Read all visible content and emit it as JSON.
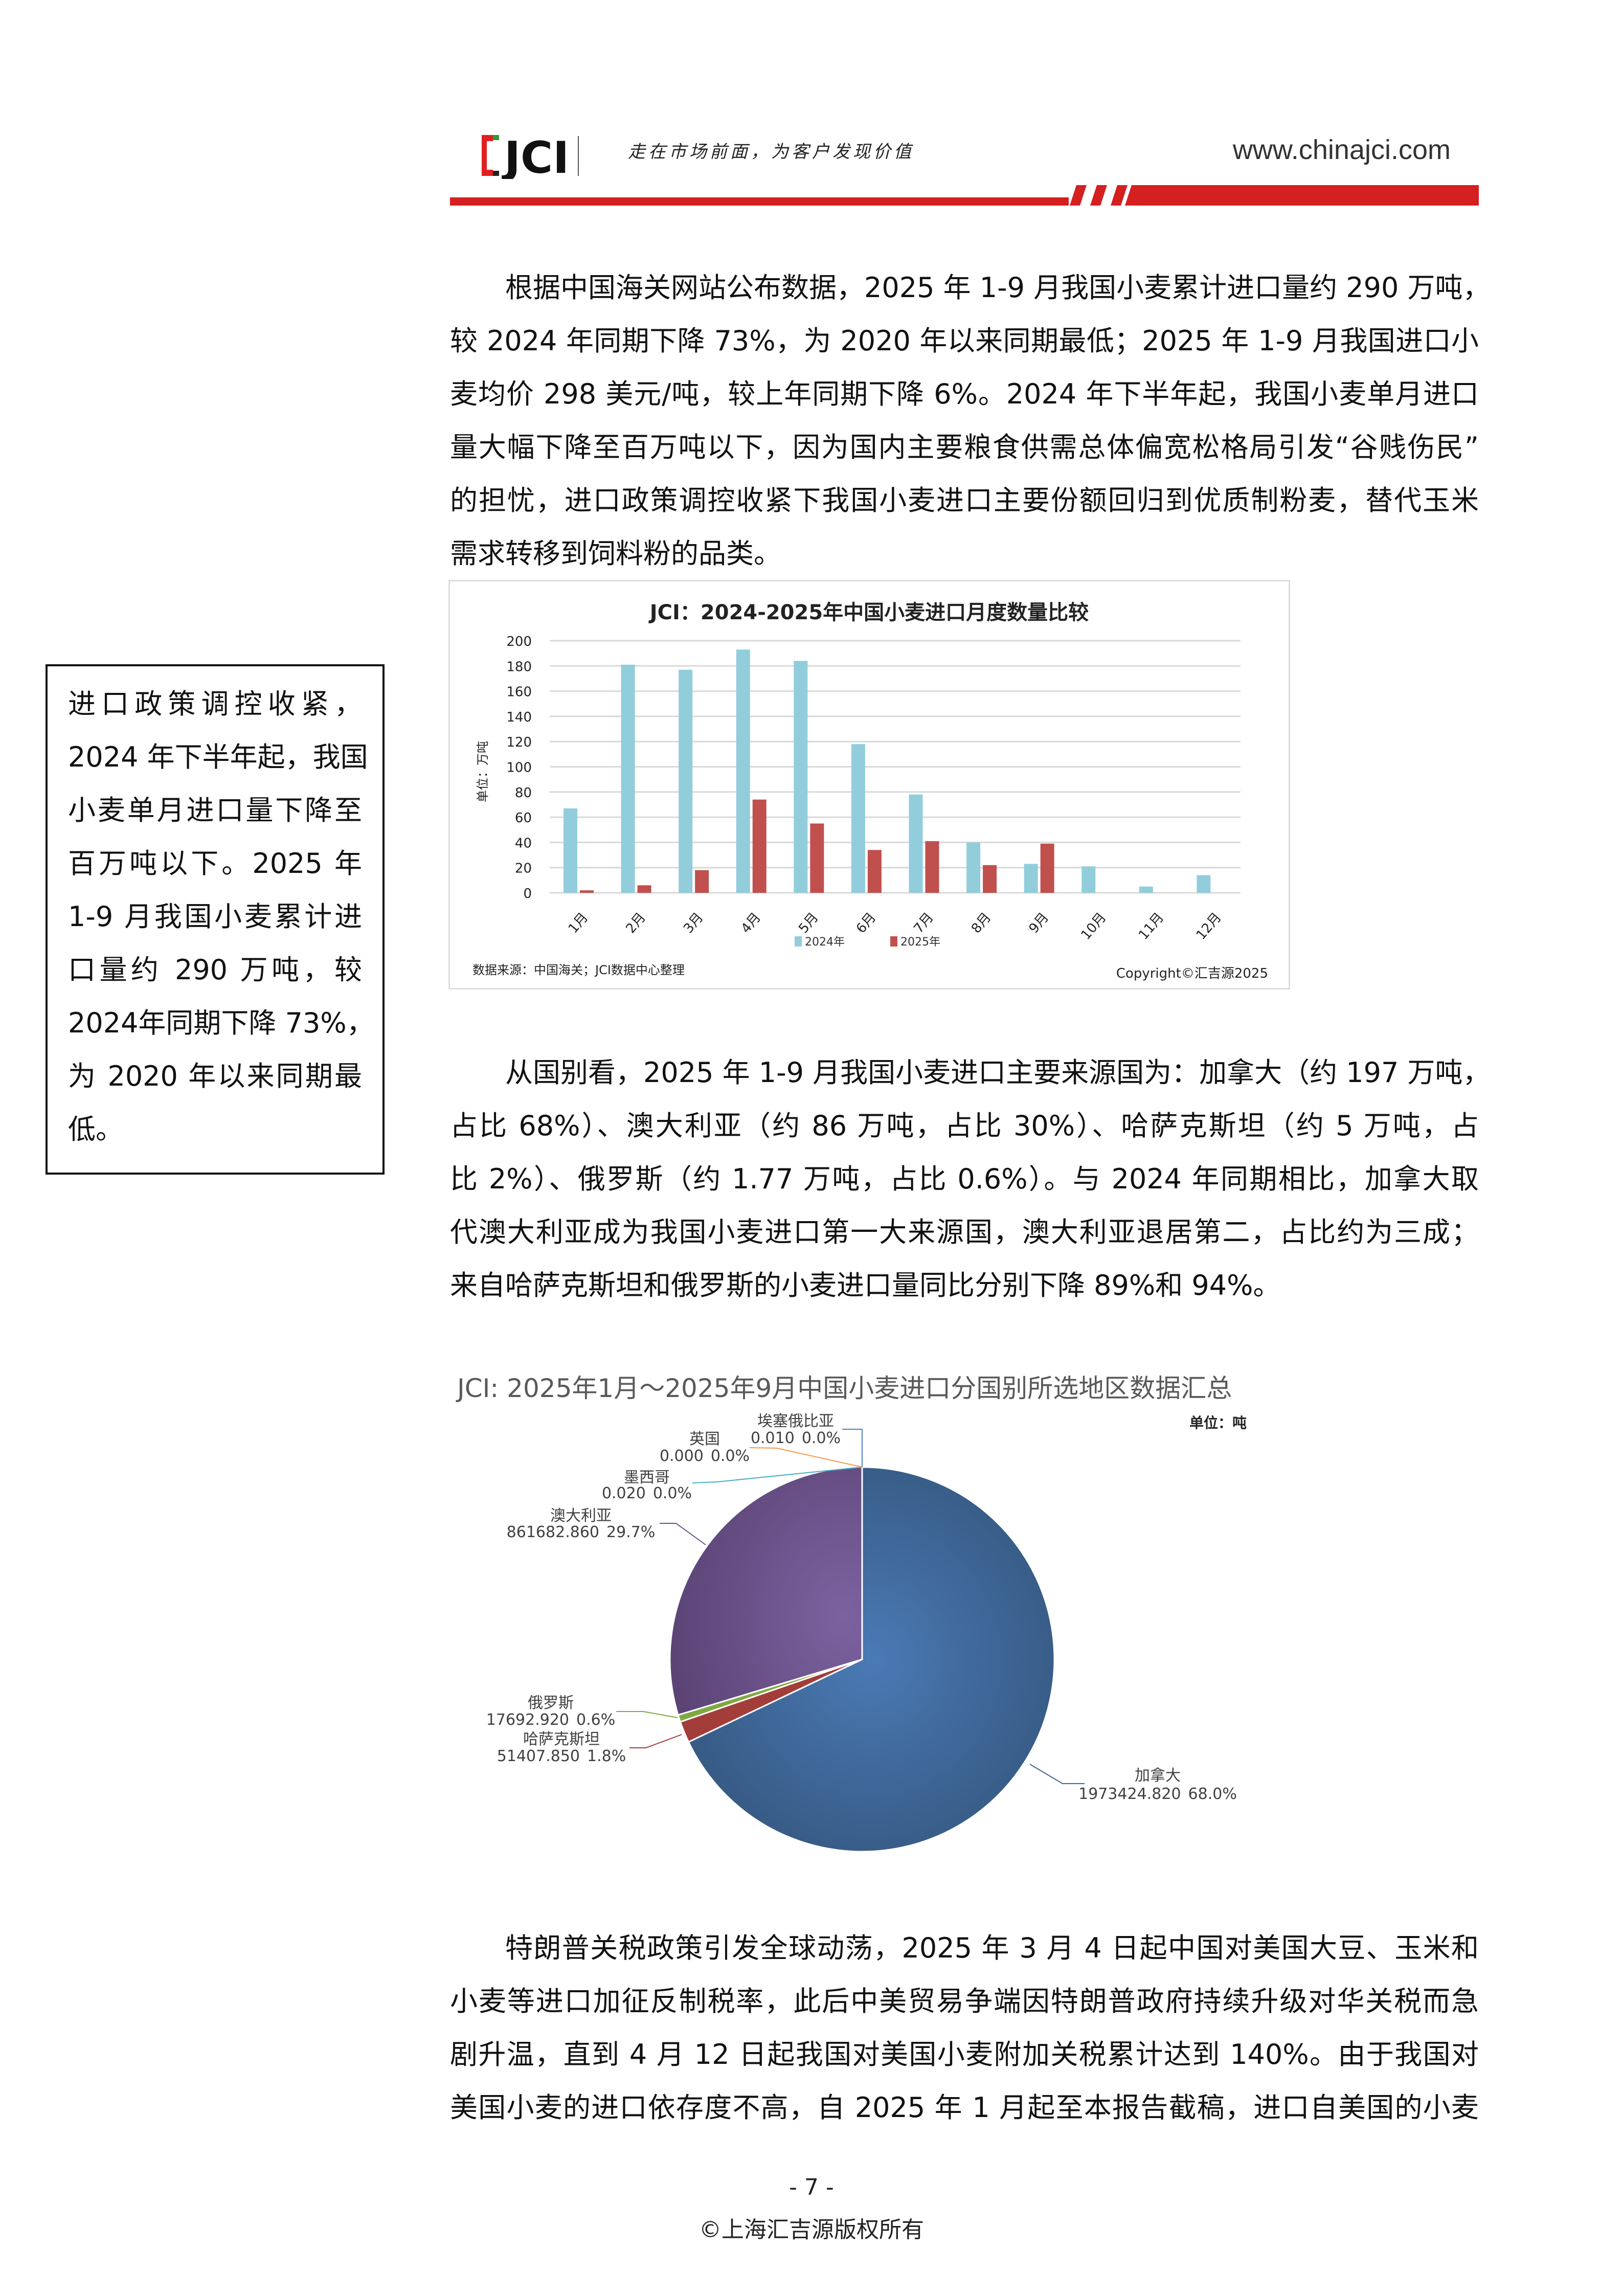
{
  "header": {
    "logo_text": "JCI",
    "slogan": "走在市场前面，为客户发现价值",
    "url": "www.chinajci.com"
  },
  "paragraph1": [
    "根据中国海关网站公布数据，2025 年 1-9 月我国小麦累计进口量约 290 万吨，",
    "较 2024 年同期下降 73%，为 2020 年以来同期最低；2025 年 1-9 月我国进口小",
    "麦均价 298 美元/吨，较上年同期下降 6%。2024 年下半年起，我国小麦单月进口",
    "量大幅下降至百万吨以下，因为国内主要粮食供需总体偏宽松格局引发“谷贱伤民”",
    "的担忧，进口政策调控收紧下我国小麦进口主要份额回归到优质制粉麦，替代玉米",
    "需求转移到饲料粉的品类。"
  ],
  "sidebar_note": [
    "进口政策调控收紧，",
    "2024 年下半年起，我国",
    "小麦单月进口量下降至",
    "百万吨以下。2025 年",
    "1-9 月我国小麦累计进",
    "口量约 290 万吨，较",
    "2024年同期下降 73%，",
    "为 2020 年以来同期最",
    "低。"
  ],
  "paragraph2": [
    "从国别看，2025 年 1-9 月我国小麦进口主要来源国为：加拿大（约 197 万吨，",
    "占比 68%）、澳大利亚（约 86 万吨，占比 30%）、哈萨克斯坦（约 5 万吨，占",
    "比 2%）、俄罗斯（约 1.77 万吨，占比 0.6%）。与 2024 年同期相比，加拿大取",
    "代澳大利亚成为我国小麦进口第一大来源国，澳大利亚退居第二，占比约为三成；",
    "来自哈萨克斯坦和俄罗斯的小麦进口量同比分别下降 89%和 94%。"
  ],
  "paragraph3": [
    "特朗普关税政策引发全球动荡，2025 年 3 月 4 日起中国对美国大豆、玉米和",
    "小麦等进口加征反制税率，此后中美贸易争端因特朗普政府持续升级对华关税而急",
    "剧升温，直到 4 月 12 日起我国对美国小麦附加关税累计达到 140%。由于我国对",
    "美国小麦的进口依存度不高，自 2025 年 1 月起至本报告截稿，进口自美国的小麦"
  ],
  "footer": {
    "page_number": "- 7 -",
    "copyright": "©上海汇吉源版权所有"
  },
  "chart_data": [
    {
      "type": "bar",
      "title": "JCI：2024-2025年中国小麦进口月度数量比较",
      "ylabel": "单位：万吨",
      "xlabel": "",
      "ylim": [
        0,
        200
      ],
      "yticks": [
        0,
        20,
        40,
        60,
        80,
        100,
        120,
        140,
        160,
        180,
        200
      ],
      "grid": true,
      "legend": "bottom",
      "categories": [
        "1月",
        "2月",
        "3月",
        "4月",
        "5月",
        "6月",
        "7月",
        "8月",
        "9月",
        "10月",
        "11月",
        "12月"
      ],
      "series": [
        {
          "name": "2024年",
          "color": "#92cddc",
          "values": [
            67,
            181,
            177,
            193,
            184,
            118,
            78,
            40,
            23,
            21,
            5,
            14
          ]
        },
        {
          "name": "2025年",
          "color": "#c0504d",
          "values": [
            2,
            6,
            18,
            74,
            55,
            34,
            41,
            22,
            39,
            null,
            null,
            null
          ]
        }
      ],
      "source": "数据来源：中国海关；JCI数据中心整理",
      "copyright": "Copyright©汇吉源2025"
    },
    {
      "type": "pie",
      "title": "JCI: 2025年1月～2025年9月中国小麦进口分国别所选地区数据汇总",
      "unit": "单位：吨",
      "slices": [
        {
          "label": "加拿大",
          "value": "1973424.820",
          "percent": "68.0%",
          "share": 68.0,
          "color": "#3f6797"
        },
        {
          "label": "哈萨克斯坦",
          "value": "51407.850",
          "percent": "1.8%",
          "share": 1.8,
          "color": "#a33d3a"
        },
        {
          "label": "俄罗斯",
          "value": "17692.920",
          "percent": "0.6%",
          "share": 0.6,
          "color": "#7fa843"
        },
        {
          "label": "澳大利亚",
          "value": "861682.860",
          "percent": "29.7%",
          "share": 29.7,
          "color": "#6a5088"
        },
        {
          "label": "墨西哥",
          "value": "0.020",
          "percent": "0.0%",
          "share": 0.0,
          "color": "#4bacc6"
        },
        {
          "label": "英国",
          "value": "0.000",
          "percent": "0.0%",
          "share": 0.0,
          "color": "#f79646"
        },
        {
          "label": "埃塞俄比亚",
          "value": "0.010",
          "percent": "0.0%",
          "share": 0.0,
          "color": "#4f81bd"
        }
      ]
    }
  ]
}
